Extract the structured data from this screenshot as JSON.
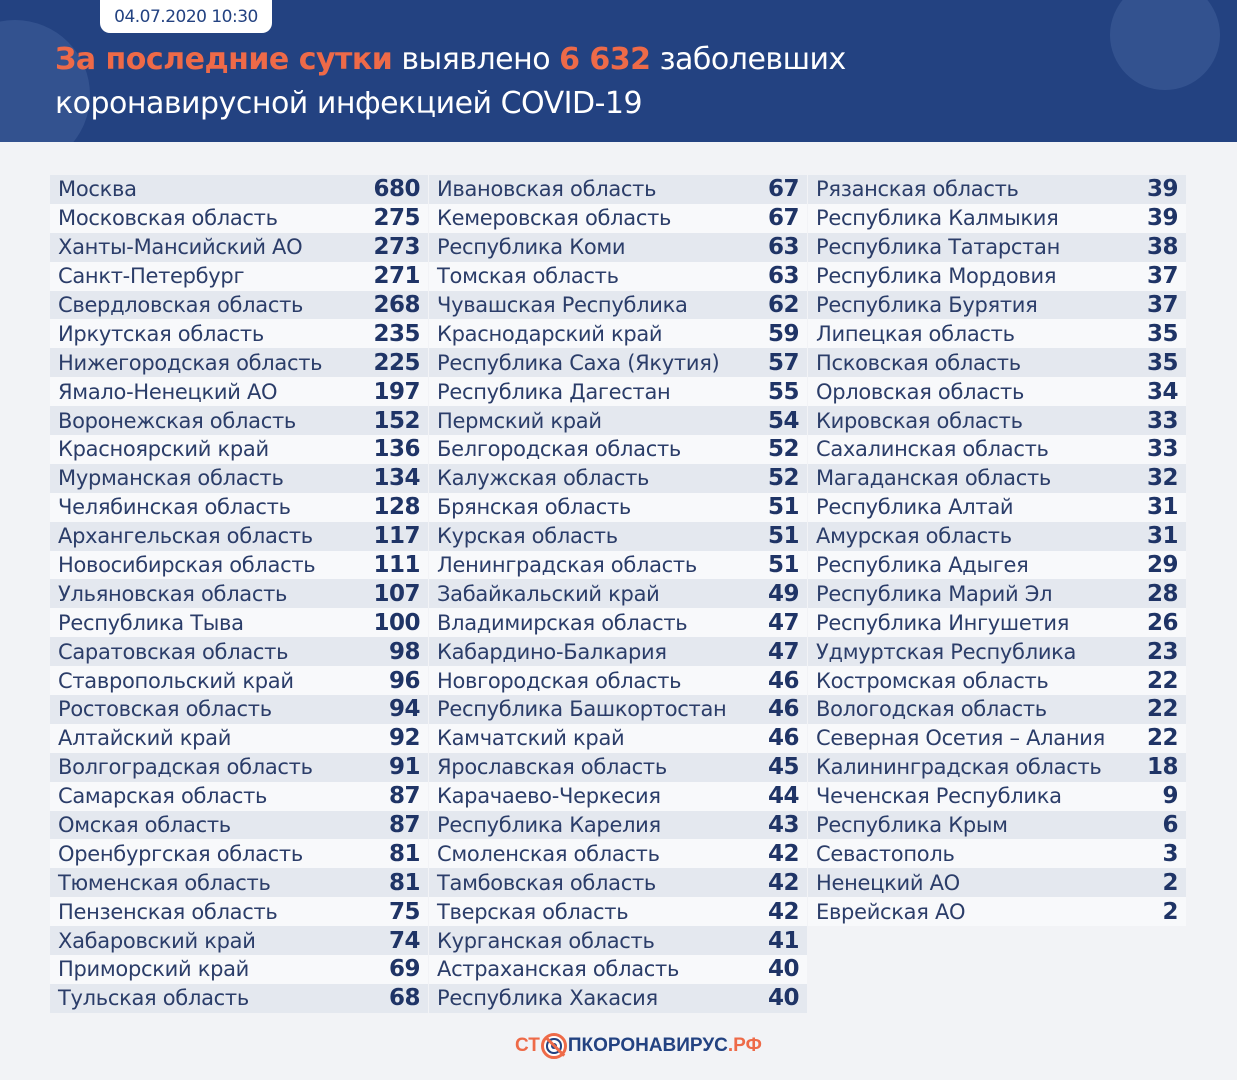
{
  "header": {
    "date": "04.07.2020 10:30",
    "title_highlight": "За последние сутки",
    "title_mid": " выявлено ",
    "title_number": "6 632",
    "title_end": " заболевших",
    "title_line2": "коронавирусной инфекцией COVID-19"
  },
  "colors": {
    "header_bg": "#234281",
    "accent": "#ee6a48",
    "number": "#1f3466"
  },
  "columns": [
    [
      [
        "Москва",
        "680"
      ],
      [
        "Московская область",
        "275"
      ],
      [
        "Ханты-Мансийский АО",
        "273"
      ],
      [
        "Санкт-Петербург",
        "271"
      ],
      [
        "Свердловская область",
        "268"
      ],
      [
        "Иркутская область",
        "235"
      ],
      [
        "Нижегородская область",
        "225"
      ],
      [
        "Ямало-Ненецкий АО",
        "197"
      ],
      [
        "Воронежская область",
        "152"
      ],
      [
        "Красноярский край",
        "136"
      ],
      [
        "Мурманская область",
        "134"
      ],
      [
        "Челябинская область",
        "128"
      ],
      [
        "Архангельская область",
        "117"
      ],
      [
        "Новосибирская область",
        "111"
      ],
      [
        "Ульяновская область",
        "107"
      ],
      [
        "Республика Тыва",
        "100"
      ],
      [
        "Саратовская область",
        "98"
      ],
      [
        "Ставропольский край",
        "96"
      ],
      [
        "Ростовская область",
        "94"
      ],
      [
        "Алтайский край",
        "92"
      ],
      [
        "Волгоградская область",
        "91"
      ],
      [
        "Самарская область",
        "87"
      ],
      [
        "Омская область",
        "87"
      ],
      [
        "Оренбургская область",
        "81"
      ],
      [
        "Тюменская область",
        "81"
      ],
      [
        "Пензенская область",
        "75"
      ],
      [
        "Хабаровский край",
        "74"
      ],
      [
        "Приморский край",
        "69"
      ],
      [
        "Тульская область",
        "68"
      ]
    ],
    [
      [
        "Ивановская область",
        "67"
      ],
      [
        "Кемеровская область",
        "67"
      ],
      [
        "Республика Коми",
        "63"
      ],
      [
        "Томская область",
        "63"
      ],
      [
        "Чувашская Республика",
        "62"
      ],
      [
        "Краснодарский край",
        "59"
      ],
      [
        "Республика Саха (Якутия)",
        "57"
      ],
      [
        "Республика Дагестан",
        "55"
      ],
      [
        "Пермский край",
        "54"
      ],
      [
        "Белгородская область",
        "52"
      ],
      [
        "Калужская область",
        "52"
      ],
      [
        "Брянская область",
        "51"
      ],
      [
        "Курская область",
        "51"
      ],
      [
        "Ленинградская область",
        "51"
      ],
      [
        "Забайкальский край",
        "49"
      ],
      [
        "Владимирская область",
        "47"
      ],
      [
        "Кабардино-Балкария",
        "47"
      ],
      [
        "Новгородская область",
        "46"
      ],
      [
        "Республика Башкортостан",
        "46"
      ],
      [
        "Камчатский край",
        "46"
      ],
      [
        "Ярославская область",
        "45"
      ],
      [
        "Карачаево-Черкесия",
        "44"
      ],
      [
        "Республика Карелия",
        "43"
      ],
      [
        "Смоленская область",
        "42"
      ],
      [
        "Тамбовская область",
        "42"
      ],
      [
        "Тверская область",
        "42"
      ],
      [
        "Курганская область",
        "41"
      ],
      [
        "Астраханская область",
        "40"
      ],
      [
        "Республика Хакасия",
        "40"
      ]
    ],
    [
      [
        "Рязанская область",
        "39"
      ],
      [
        "Республика Калмыкия",
        "39"
      ],
      [
        "Республика Татарстан",
        "38"
      ],
      [
        "Республика Мордовия",
        "37"
      ],
      [
        "Республика Бурятия",
        "37"
      ],
      [
        "Липецкая область",
        "35"
      ],
      [
        "Псковская область",
        "35"
      ],
      [
        "Орловская область",
        "34"
      ],
      [
        "Кировская область",
        "33"
      ],
      [
        "Сахалинская область",
        "33"
      ],
      [
        "Магаданская область",
        "32"
      ],
      [
        "Республика Алтай",
        "31"
      ],
      [
        "Амурская область",
        "31"
      ],
      [
        "Республика Адыгея",
        "29"
      ],
      [
        "Республика Марий Эл",
        "28"
      ],
      [
        "Республика Ингушетия",
        "26"
      ],
      [
        "Удмуртская Республика",
        "23"
      ],
      [
        "Костромская область",
        "22"
      ],
      [
        "Вологодская область",
        "22"
      ],
      [
        "Северная Осетия – Алания",
        "22"
      ],
      [
        "Калининградская область",
        "18"
      ],
      [
        "Чеченская Республика",
        "9"
      ],
      [
        "Республика Крым",
        "6"
      ],
      [
        "Севастополь",
        "3"
      ],
      [
        "Ненецкий АО",
        "2"
      ],
      [
        "Еврейская АО",
        "2"
      ]
    ]
  ],
  "logo": {
    "part1": "СТ",
    "part2": "ПКОРОНАВИРУС",
    "part3": ".РФ"
  }
}
